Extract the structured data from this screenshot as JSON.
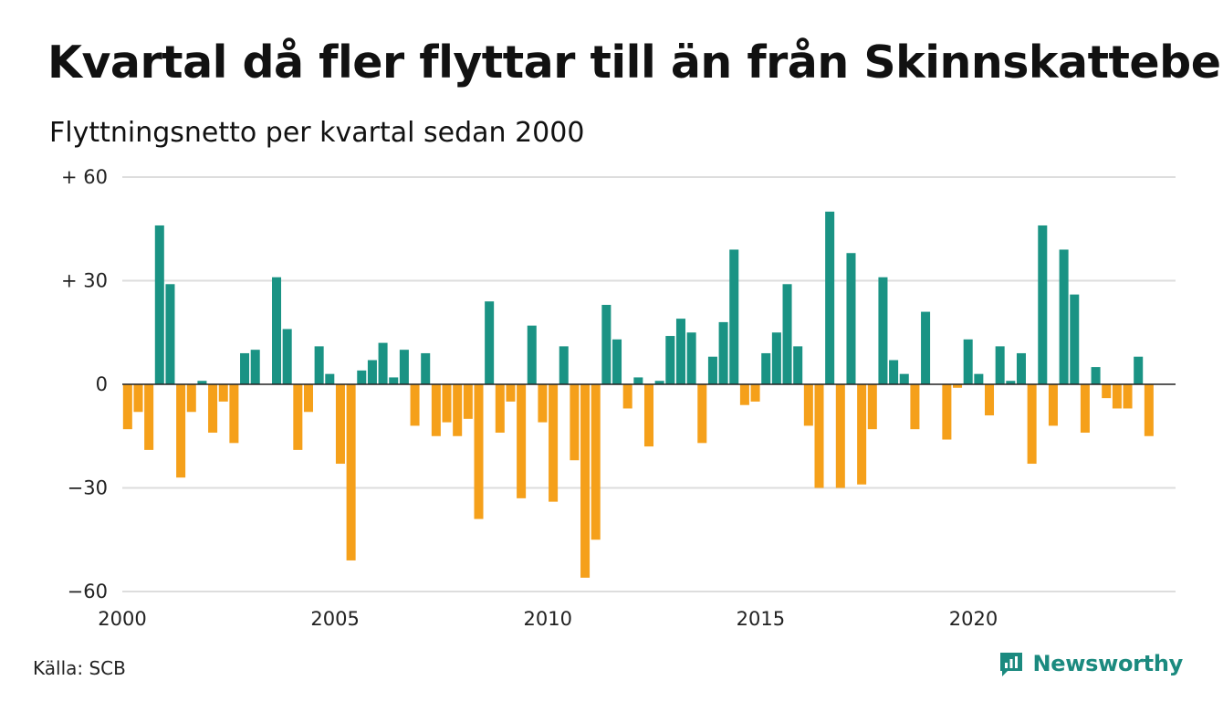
{
  "header": {
    "title": "Kvartal då fler flyttar till än från Skinnskatteberg",
    "subtitle": "Flyttningsnetto per kvartal sedan 2000"
  },
  "footer": {
    "source": "Källa: SCB",
    "brand": "Newsworthy",
    "brand_icon": "newsworthy-logo-icon"
  },
  "colors": {
    "positive": "#1a9384",
    "negative": "#f5a01a",
    "grid": "#dddddd",
    "zero_line": "#222222",
    "brand": "#1b8a7f"
  },
  "chart_data": {
    "type": "bar",
    "title": "Kvartal då fler flyttar till än från Skinnskatteberg",
    "subtitle": "Flyttningsnetto per kvartal sedan 2000",
    "xlabel": "",
    "ylabel": "",
    "ylim": [
      -60,
      60
    ],
    "xlim": [
      2000,
      2024.75
    ],
    "grid": true,
    "y_ticks": [
      {
        "value": 60,
        "label": "+ 60"
      },
      {
        "value": 30,
        "label": "+ 30"
      },
      {
        "value": 0,
        "label": "0"
      },
      {
        "value": -30,
        "label": "−30"
      },
      {
        "value": -60,
        "label": "−60"
      }
    ],
    "x_ticks": [
      {
        "value": 2000,
        "label": "2000"
      },
      {
        "value": 2005,
        "label": "2005"
      },
      {
        "value": 2010,
        "label": "2010"
      },
      {
        "value": 2015,
        "label": "2015"
      },
      {
        "value": 2020,
        "label": "2020"
      }
    ],
    "start_year": 2000,
    "values": [
      -13,
      -8,
      -19,
      46,
      29,
      -27,
      -8,
      1,
      -14,
      -5,
      -17,
      9,
      10,
      0,
      31,
      16,
      -19,
      -8,
      11,
      3,
      -23,
      -51,
      4,
      7,
      12,
      2,
      10,
      -12,
      9,
      -15,
      -11,
      -15,
      -10,
      -39,
      24,
      -14,
      -5,
      -33,
      17,
      -11,
      -34,
      11,
      -22,
      -56,
      -45,
      23,
      13,
      -7,
      2,
      -18,
      1,
      14,
      19,
      15,
      -17,
      8,
      18,
      39,
      -6,
      -5,
      9,
      15,
      29,
      11,
      -12,
      -30,
      50,
      -30,
      38,
      -29,
      -13,
      31,
      7,
      3,
      -13,
      21,
      0,
      -16,
      -1,
      13,
      3,
      -9,
      11,
      1,
      9,
      -23,
      46,
      -12,
      39,
      26,
      -14,
      5,
      -4,
      -7,
      -7,
      8,
      -15
    ]
  }
}
